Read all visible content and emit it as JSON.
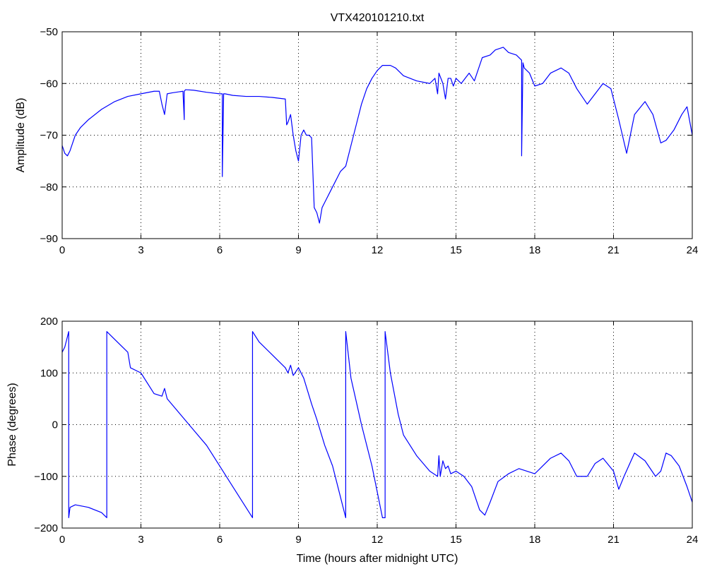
{
  "figure": {
    "title": "VTX420101210.txt"
  },
  "colors": {
    "line": "#0000ff",
    "axes": "#000000",
    "grid": "#000000",
    "background": "#ffffff"
  },
  "chart_data": [
    {
      "type": "line",
      "title": "VTX420101210.txt",
      "xlabel": "",
      "ylabel": "Amplitude (dB)",
      "xlim": [
        0,
        24
      ],
      "ylim": [
        -90,
        -50
      ],
      "xticks": [
        0,
        3,
        6,
        9,
        12,
        15,
        18,
        21,
        24
      ],
      "yticks": [
        -90,
        -80,
        -70,
        -60,
        -50
      ],
      "grid": true,
      "series": [
        {
          "x": [
            0,
            0.1,
            0.2,
            0.3,
            0.4,
            0.5,
            0.7,
            1,
            1.5,
            2,
            2.5,
            3,
            3.5,
            3.7,
            3.8,
            3.9,
            4.0,
            4.2,
            4.6,
            4.65,
            4.65,
            4.7,
            5,
            5.5,
            6,
            6.1,
            6.1,
            6.15,
            6.2,
            6.5,
            7,
            7.5,
            8,
            8.5,
            8.55,
            8.6,
            8.7,
            8.8,
            8.9,
            9.0,
            9.1,
            9.2,
            9.3,
            9.4,
            9.5,
            9.6,
            9.7,
            9.8,
            9.9,
            10.0,
            10.2,
            10.4,
            10.6,
            10.8,
            11.0,
            11.2,
            11.4,
            11.6,
            11.8,
            12.0,
            12.2,
            12.5,
            12.7,
            13.0,
            13.5,
            14.0,
            14.2,
            14.3,
            14.35,
            14.5,
            14.6,
            14.7,
            14.8,
            14.9,
            15.0,
            15.2,
            15.5,
            15.7,
            16.0,
            16.3,
            16.5,
            16.8,
            17.0,
            17.3,
            17.5,
            17.5,
            17.55,
            17.6,
            17.8,
            18.0,
            18.3,
            18.6,
            19.0,
            19.3,
            19.6,
            20.0,
            20.3,
            20.6,
            20.9,
            21.2,
            21.5,
            21.8,
            22.2,
            22.5,
            22.8,
            23.0,
            23.3,
            23.6,
            23.8,
            24.0
          ],
          "values": [
            -72,
            -73.5,
            -74,
            -73,
            -71.5,
            -70,
            -68.5,
            -67,
            -65,
            -63.5,
            -62.5,
            -62,
            -61.5,
            -61.5,
            -64,
            -66,
            -62,
            -61.8,
            -61.5,
            -67,
            -61.5,
            -61.2,
            -61.3,
            -61.7,
            -62,
            -62,
            -78,
            -62,
            -62,
            -62.3,
            -62.5,
            -62.5,
            -62.7,
            -63,
            -68,
            -67.5,
            -66,
            -70,
            -73,
            -75,
            -70,
            -69,
            -70,
            -70,
            -70.5,
            -84,
            -85,
            -87,
            -84,
            -83,
            -81,
            -79,
            -77,
            -76,
            -72,
            -68,
            -64,
            -61,
            -59,
            -57.5,
            -56.5,
            -56.5,
            -57,
            -58.5,
            -59.5,
            -60,
            -59,
            -62,
            -58,
            -60,
            -63,
            -59,
            -59,
            -60.5,
            -59,
            -60,
            -58,
            -59.5,
            -55,
            -54.5,
            -53.5,
            -53,
            -54,
            -54.5,
            -55.5,
            -74,
            -56,
            -57,
            -58,
            -60.5,
            -60,
            -58,
            -57,
            -58,
            -61,
            -64,
            -62,
            -60,
            -61,
            -67,
            -73.5,
            -66,
            -63.5,
            -66,
            -71.5,
            -71,
            -69,
            -66,
            -64.5,
            -70
          ]
        }
      ]
    },
    {
      "type": "line",
      "title": "",
      "xlabel": "Time (hours after midnight UTC)",
      "ylabel": "Phase (degrees)",
      "xlim": [
        0,
        24
      ],
      "ylim": [
        -200,
        200
      ],
      "xticks": [
        0,
        3,
        6,
        9,
        12,
        15,
        18,
        21,
        24
      ],
      "yticks": [
        -200,
        -100,
        0,
        100,
        200
      ],
      "grid": true,
      "series": [
        {
          "x": [
            0,
            0.1,
            0.2,
            0.25,
            0.25,
            0.3,
            0.5,
            1.0,
            1.5,
            1.7,
            1.7,
            2.0,
            2.5,
            2.6,
            3.0,
            3.5,
            3.8,
            3.9,
            4.0,
            4.5,
            5.0,
            5.5,
            6.0,
            6.5,
            7.0,
            7.25,
            7.25,
            7.5,
            8.0,
            8.5,
            8.6,
            8.7,
            8.8,
            9.0,
            9.2,
            9.5,
            9.7,
            10.0,
            10.3,
            10.6,
            10.8,
            10.8,
            11.0,
            11.4,
            11.8,
            12.2,
            12.3,
            12.3,
            12.5,
            12.8,
            13.0,
            13.5,
            14.0,
            14.3,
            14.35,
            14.4,
            14.5,
            14.6,
            14.7,
            14.8,
            15.0,
            15.3,
            15.6,
            15.9,
            16.1,
            16.3,
            16.6,
            17.0,
            17.4,
            17.7,
            18.0,
            18.3,
            18.6,
            19.0,
            19.3,
            19.6,
            20.0,
            20.3,
            20.6,
            21.0,
            21.2,
            21.4,
            21.8,
            22.2,
            22.6,
            22.8,
            23.0,
            23.2,
            23.5,
            23.8,
            24.0
          ],
          "values": [
            140,
            150,
            170,
            180,
            -180,
            -160,
            -155,
            -160,
            -170,
            -180,
            180,
            165,
            140,
            110,
            100,
            60,
            55,
            70,
            50,
            20,
            -10,
            -40,
            -80,
            -120,
            -160,
            -180,
            180,
            160,
            135,
            110,
            100,
            115,
            95,
            110,
            90,
            40,
            10,
            -40,
            -80,
            -140,
            -180,
            180,
            90,
            0,
            -80,
            -180,
            -180,
            180,
            100,
            20,
            -20,
            -60,
            -90,
            -100,
            -60,
            -100,
            -70,
            -85,
            -80,
            -95,
            -90,
            -100,
            -120,
            -165,
            -175,
            -150,
            -110,
            -95,
            -85,
            -90,
            -95,
            -80,
            -65,
            -55,
            -70,
            -100,
            -100,
            -75,
            -65,
            -90,
            -125,
            -100,
            -55,
            -70,
            -100,
            -90,
            -55,
            -60,
            -80,
            -120,
            -150
          ]
        }
      ]
    }
  ]
}
